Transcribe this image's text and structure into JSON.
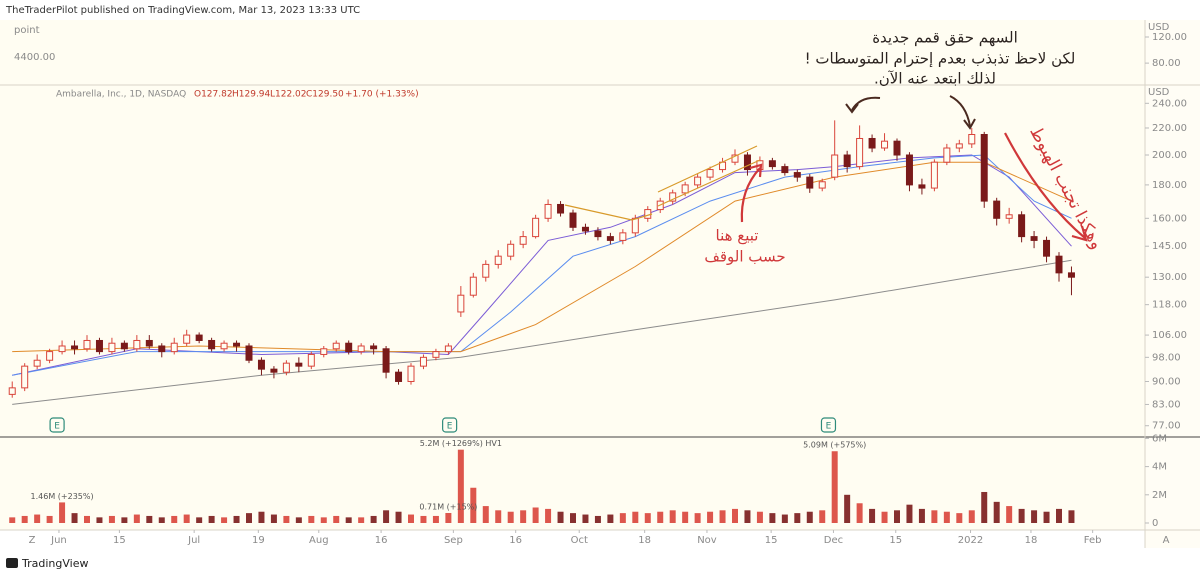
{
  "header": "TheTraderPilot published on TradingView.com, Mar 13, 2023 13:33 UTC",
  "footer": "TradingView",
  "time_axis_buttons": [
    "Z",
    "A"
  ],
  "annotations": {
    "note_line1": "السهم حقق قمم جديدة",
    "note_line2": "لكن لاحظ تذبذب بعدم إحترام المتوسطات !",
    "note_line3": "لذلك ابتعد عنه الآن.",
    "sell_line1": "تبيع هنا",
    "sell_line2": "حسب الوقف",
    "drop_note": "وهكذا تجنب الهبوط"
  },
  "chart_data": {
    "type": "candlestick",
    "legend": {
      "symbol": "Ambarella, Inc., 1D, NASDAQ",
      "open": "O127.82",
      "high": "H129.94",
      "low": "L122.02",
      "close": "C129.50",
      "change": "+1.70 (+1.33%)"
    },
    "currency": "USD",
    "log_scale": true,
    "up_color": "#d9443a",
    "down_color": "#7a1a1a",
    "earnings_marker": "E",
    "earnings_at": [
      3.6,
      35.1,
      65.5
    ],
    "ylim": [
      74,
      256
    ],
    "yticks": [
      {
        "value": 240,
        "label": "240.00"
      },
      {
        "value": 220,
        "label": "220.00"
      },
      {
        "value": 200,
        "label": "200.00"
      },
      {
        "value": 180,
        "label": "180.00"
      },
      {
        "value": 160,
        "label": "160.00"
      },
      {
        "value": 145,
        "label": "145.00"
      },
      {
        "value": 130,
        "label": "130.00"
      },
      {
        "value": 118,
        "label": "118.00"
      },
      {
        "value": 106,
        "label": "106.00"
      },
      {
        "value": 98,
        "label": "98.00"
      },
      {
        "value": 90,
        "label": "90.00"
      },
      {
        "value": 83,
        "label": "83.00"
      },
      {
        "value": 77,
        "label": "77.00"
      }
    ],
    "xlim": [
      -0.5,
      90.5
    ],
    "xticks": [
      {
        "value": 3.75,
        "label": "Jun"
      },
      {
        "value": 8.6,
        "label": "15"
      },
      {
        "value": 14.6,
        "label": "Jul"
      },
      {
        "value": 19.75,
        "label": "19"
      },
      {
        "value": 24.6,
        "label": "Aug"
      },
      {
        "value": 29.6,
        "label": "16"
      },
      {
        "value": 35.4,
        "label": "Sep"
      },
      {
        "value": 40.4,
        "label": "16"
      },
      {
        "value": 45.5,
        "label": "Oct"
      },
      {
        "value": 50.75,
        "label": "18"
      },
      {
        "value": 55.75,
        "label": "Nov"
      },
      {
        "value": 60.9,
        "label": "15"
      },
      {
        "value": 65.9,
        "label": "Dec"
      },
      {
        "value": 70.9,
        "label": "15"
      },
      {
        "value": 76.9,
        "label": "2022"
      },
      {
        "value": 81.75,
        "label": "18"
      },
      {
        "value": 86.7,
        "label": "Feb"
      }
    ],
    "open": [
      86,
      88,
      95,
      97,
      100,
      102,
      101,
      104,
      100,
      103,
      101,
      104,
      102,
      100,
      103,
      106,
      104,
      101,
      103,
      102,
      97,
      94,
      93,
      96,
      95,
      99,
      101,
      103,
      100,
      102,
      101,
      93,
      90,
      95,
      98,
      100,
      115,
      122,
      130,
      136,
      140,
      146,
      150,
      160,
      168,
      163,
      155,
      153,
      150,
      148,
      152,
      160,
      165,
      170,
      175,
      180,
      185,
      190,
      195,
      200,
      190,
      196,
      192,
      188,
      185,
      178,
      185,
      200,
      192,
      212,
      205,
      210,
      200,
      180,
      178,
      195,
      205,
      208,
      215,
      170,
      160,
      162,
      150,
      148,
      140,
      132
    ],
    "high": [
      90,
      96,
      99,
      101,
      104,
      104,
      106,
      105,
      105,
      104,
      106,
      106,
      103,
      105,
      108,
      107,
      105,
      104,
      104,
      103,
      98,
      95,
      97,
      98,
      100,
      102,
      104,
      104,
      103,
      103,
      102,
      94,
      96,
      99,
      101,
      103,
      126,
      132,
      138,
      143,
      148,
      153,
      162,
      171,
      170,
      165,
      157,
      155,
      152,
      154,
      162,
      167,
      172,
      177,
      182,
      187,
      192,
      198,
      204,
      202,
      199,
      198,
      194,
      190,
      187,
      184,
      226,
      203,
      222,
      215,
      216,
      212,
      202,
      184,
      197,
      208,
      211,
      220,
      217,
      172,
      166,
      164,
      153,
      150,
      142,
      135
    ],
    "low": [
      85,
      87,
      94,
      96,
      99,
      99,
      100,
      99,
      99,
      100,
      100,
      101,
      98,
      99,
      102,
      103,
      100,
      100,
      100,
      96,
      92,
      91,
      92,
      93,
      94,
      98,
      100,
      99,
      99,
      99,
      91,
      89,
      89,
      94,
      97,
      99,
      113,
      121,
      128,
      134,
      138,
      144,
      149,
      158,
      161,
      153,
      151,
      148,
      146,
      146,
      150,
      158,
      163,
      168,
      173,
      178,
      183,
      188,
      193,
      186,
      188,
      190,
      186,
      182,
      175,
      176,
      183,
      188,
      190,
      202,
      203,
      196,
      176,
      174,
      176,
      193,
      202,
      205,
      166,
      156,
      157,
      147,
      144,
      137,
      128,
      122
    ],
    "close": [
      88,
      95,
      97,
      100,
      102,
      101,
      104,
      100,
      103,
      101,
      104,
      102,
      100,
      103,
      106,
      104,
      101,
      103,
      102,
      97,
      94,
      93,
      96,
      95,
      99,
      101,
      103,
      100,
      102,
      101,
      93,
      90,
      95,
      98,
      100,
      102,
      122,
      130,
      136,
      140,
      146,
      150,
      160,
      168,
      163,
      155,
      153,
      150,
      148,
      152,
      160,
      165,
      170,
      175,
      180,
      185,
      190,
      195,
      200,
      190,
      196,
      192,
      188,
      185,
      178,
      182,
      200,
      192,
      212,
      205,
      210,
      200,
      180,
      178,
      195,
      205,
      208,
      215,
      170,
      160,
      162,
      150,
      148,
      140,
      132,
      130
    ],
    "moving_averages": [
      {
        "color": "#7b5cd6",
        "x": [
          0,
          10,
          20,
          30,
          35,
          38,
          43,
          48,
          53,
          58,
          63,
          66,
          72,
          77,
          80,
          85
        ],
        "values": [
          92,
          101,
          99,
          100,
          99,
          115,
          148,
          155,
          168,
          188,
          190,
          192,
          198,
          200,
          185,
          145
        ]
      },
      {
        "color": "#5b8def",
        "x": [
          0,
          10,
          20,
          30,
          36,
          40,
          45,
          50,
          56,
          62,
          68,
          74,
          78,
          82,
          85
        ],
        "values": [
          92,
          100,
          100,
          100,
          100,
          115,
          140,
          150,
          170,
          185,
          192,
          198,
          200,
          170,
          160
        ]
      },
      {
        "color": "#e08a2a",
        "x": [
          0,
          15,
          30,
          36,
          42,
          50,
          58,
          66,
          74,
          78,
          85
        ],
        "values": [
          100,
          102,
          100,
          100,
          110,
          135,
          170,
          185,
          195,
          195,
          170
        ]
      },
      {
        "color": "#8c8c8c",
        "x": [
          0,
          20,
          36,
          50,
          66,
          85
        ],
        "values": [
          83,
          92,
          98,
          108,
          120,
          138
        ]
      }
    ],
    "volume": {
      "values": [
        0.4,
        0.5,
        0.6,
        0.5,
        1.46,
        0.7,
        0.5,
        0.4,
        0.5,
        0.4,
        0.6,
        0.5,
        0.4,
        0.5,
        0.6,
        0.4,
        0.5,
        0.4,
        0.5,
        0.7,
        0.8,
        0.6,
        0.5,
        0.4,
        0.5,
        0.4,
        0.5,
        0.4,
        0.4,
        0.5,
        0.9,
        0.8,
        0.6,
        0.5,
        0.5,
        0.71,
        5.2,
        2.5,
        1.2,
        0.9,
        0.8,
        0.9,
        1.1,
        1.0,
        0.8,
        0.7,
        0.6,
        0.5,
        0.6,
        0.7,
        0.8,
        0.7,
        0.8,
        0.9,
        0.8,
        0.7,
        0.8,
        0.9,
        1.0,
        0.9,
        0.8,
        0.7,
        0.6,
        0.7,
        0.8,
        0.9,
        5.09,
        2.0,
        1.4,
        1.0,
        0.8,
        0.9,
        1.3,
        1.0,
        0.9,
        0.8,
        0.7,
        0.9,
        2.2,
        1.5,
        1.2,
        1.0,
        0.9,
        0.8,
        1.0,
        0.9
      ],
      "ylim": [
        0,
        6.1
      ],
      "yticks": [
        0,
        {
          "value": 2,
          "label": "2M"
        },
        {
          "value": 4,
          "label": "4M"
        },
        {
          "value": 6,
          "label": "6M"
        }
      ],
      "labels": [
        {
          "index": 4,
          "text": "1.46M (+235%)"
        },
        {
          "index": 35,
          "text": "0.71M (+15%)"
        },
        {
          "index": 36,
          "text": "5.2M (+1269%) HV1"
        },
        {
          "index": 66,
          "text": "5.09M (+575%)"
        }
      ]
    },
    "upper_pane": {
      "label": "point",
      "value_label": "4400.00",
      "currency": "USD",
      "ylim": [
        48,
        143
      ],
      "yticks": [
        {
          "value": 120,
          "label": "120.00"
        },
        {
          "value": 80,
          "label": "80.00"
        }
      ]
    }
  }
}
